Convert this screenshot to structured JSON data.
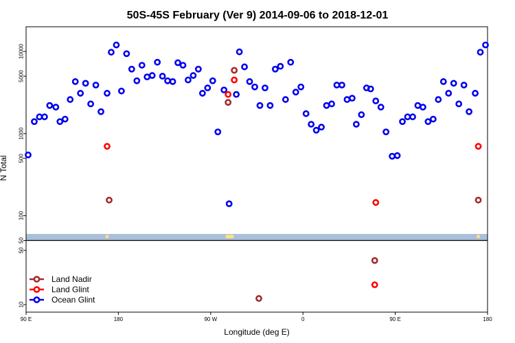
{
  "chart_data": {
    "type": "scatter",
    "title": "50S-45S February (Ver 9)   2014-09-06 to 2018-12-01",
    "xlabel": "Longitude (deg E)",
    "ylabel": "N Total",
    "yscale": "log",
    "xlim": [
      0,
      450
    ],
    "ylim_upper": [
      45,
      20000
    ],
    "ylim_lower": [
      8,
      60
    ],
    "xticks": [
      {
        "value": 0,
        "label": "90 E"
      },
      {
        "value": 90,
        "label": "180"
      },
      {
        "value": 180,
        "label": "90 W"
      },
      {
        "value": 270,
        "label": "0"
      },
      {
        "value": 360,
        "label": "90 E"
      },
      {
        "value": 450,
        "label": "180"
      }
    ],
    "yticks_upper": [
      {
        "value": 50,
        "label": "50"
      },
      {
        "value": 100,
        "label": "100"
      },
      {
        "value": 500,
        "label": "500"
      },
      {
        "value": 1000,
        "label": "1000"
      },
      {
        "value": 5000,
        "label": "5000"
      },
      {
        "value": 10000,
        "label": "10000"
      }
    ],
    "yticks_lower": [
      {
        "value": 10,
        "label": "10"
      },
      {
        "value": 50,
        "label": "50"
      }
    ],
    "band": {
      "from": 50,
      "to": 60,
      "color": "#aabfd9"
    },
    "legend_position": "bottom-left",
    "series": [
      {
        "name": "Land Nadir",
        "color": "#a52a2a",
        "points": [
          [
            81,
            155
          ],
          [
            197,
            2400
          ],
          [
            203,
            5900
          ],
          [
            227,
            12
          ],
          [
            340,
            37
          ],
          [
            441,
            155
          ]
        ]
      },
      {
        "name": "Land Glint",
        "color": "#ff0000",
        "points": [
          [
            79,
            700
          ],
          [
            197,
            3000
          ],
          [
            203,
            4500
          ],
          [
            340,
            18
          ],
          [
            341,
            145
          ],
          [
            441,
            700
          ]
        ]
      },
      {
        "name": "Ocean Glint",
        "color": "#0000ee",
        "points": [
          [
            2,
            550
          ],
          [
            8,
            1400
          ],
          [
            13,
            1600
          ],
          [
            18,
            1600
          ],
          [
            23,
            2200
          ],
          [
            29,
            2100
          ],
          [
            33,
            1400
          ],
          [
            38,
            1500
          ],
          [
            43,
            2600
          ],
          [
            48,
            4300
          ],
          [
            53,
            3100
          ],
          [
            58,
            4100
          ],
          [
            63,
            2300
          ],
          [
            68,
            3900
          ],
          [
            73,
            1850
          ],
          [
            79,
            3100
          ],
          [
            83,
            9800
          ],
          [
            88,
            12000
          ],
          [
            93,
            3300
          ],
          [
            98,
            9400
          ],
          [
            103,
            6100
          ],
          [
            108,
            4400
          ],
          [
            113,
            6800
          ],
          [
            118,
            4900
          ],
          [
            123,
            5100
          ],
          [
            128,
            7400
          ],
          [
            133,
            5000
          ],
          [
            138,
            4400
          ],
          [
            143,
            4300
          ],
          [
            148,
            7300
          ],
          [
            153,
            6800
          ],
          [
            158,
            4500
          ],
          [
            163,
            5100
          ],
          [
            168,
            6100
          ],
          [
            172,
            3100
          ],
          [
            177,
            3600
          ],
          [
            182,
            4400
          ],
          [
            187,
            1050
          ],
          [
            193,
            3400
          ],
          [
            198,
            140
          ],
          [
            205,
            3000
          ],
          [
            208,
            9900
          ],
          [
            213,
            6500
          ],
          [
            218,
            4300
          ],
          [
            223,
            3700
          ],
          [
            228,
            2200
          ],
          [
            233,
            3600
          ],
          [
            238,
            2200
          ],
          [
            243,
            6100
          ],
          [
            248,
            6600
          ],
          [
            253,
            2600
          ],
          [
            258,
            7400
          ],
          [
            263,
            3200
          ],
          [
            268,
            3700
          ],
          [
            273,
            1750
          ],
          [
            278,
            1300
          ],
          [
            283,
            1100
          ],
          [
            288,
            1200
          ],
          [
            293,
            2200
          ],
          [
            298,
            2300
          ],
          [
            303,
            3900
          ],
          [
            308,
            3900
          ],
          [
            313,
            2600
          ],
          [
            318,
            2700
          ],
          [
            322,
            1300
          ],
          [
            327,
            1700
          ],
          [
            332,
            3600
          ],
          [
            336,
            3500
          ],
          [
            341,
            2500
          ],
          [
            346,
            2100
          ],
          [
            351,
            1050
          ],
          [
            357,
            530
          ],
          [
            362,
            540
          ],
          [
            367,
            1400
          ],
          [
            372,
            1600
          ],
          [
            377,
            1600
          ],
          [
            382,
            2200
          ],
          [
            387,
            2100
          ],
          [
            392,
            1400
          ],
          [
            397,
            1500
          ],
          [
            402,
            2600
          ],
          [
            407,
            4300
          ],
          [
            412,
            3100
          ],
          [
            417,
            4100
          ],
          [
            422,
            2300
          ],
          [
            427,
            3900
          ],
          [
            432,
            1850
          ],
          [
            438,
            3100
          ],
          [
            443,
            9800
          ],
          [
            448,
            12000
          ]
        ]
      }
    ],
    "band_markers": {
      "color": "#ffe082",
      "x": [
        79,
        196,
        197,
        198,
        199,
        200,
        201,
        441
      ]
    }
  }
}
